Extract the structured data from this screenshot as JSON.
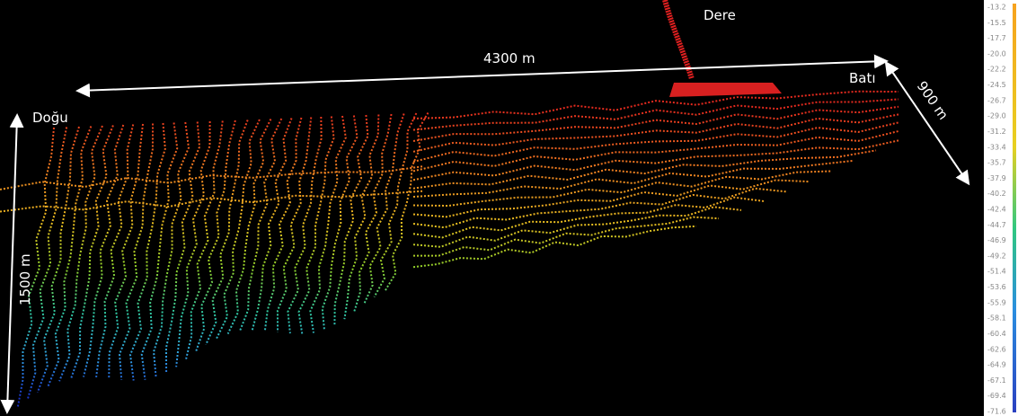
{
  "labels": {
    "stream": "Dere",
    "length": "4300 m",
    "west": "Batı",
    "width": "900 m",
    "east": "Doğu",
    "height": "1500 m"
  },
  "colorbar": {
    "ticks": [
      "-13.2",
      "-15.5",
      "-17.7",
      "-20.0",
      "-22.2",
      "-24.5",
      "-26.7",
      "-29.0",
      "-31.2",
      "-33.4",
      "-35.7",
      "-37.9",
      "-40.2",
      "-42.4",
      "-44.7",
      "-46.9",
      "-49.2",
      "-51.4",
      "-53.6",
      "-55.9",
      "-58.1",
      "-60.4",
      "-62.6",
      "-64.9",
      "-67.1",
      "-69.4",
      "-71.6"
    ]
  }
}
